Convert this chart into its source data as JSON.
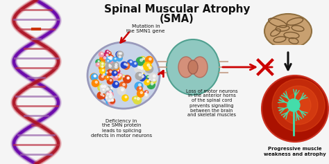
{
  "title_line1": "Spinal Muscular Atrophy",
  "title_line2": "(SMA)",
  "title_fontsize": 11,
  "title_fontsize2": 10.5,
  "bg_color": "#f5f5f5",
  "label_mutation": "Mutation in\nthe SMN1 gene",
  "label_deficiency": "Deficiency in\nthe SMN protein\nleads to splicing\ndefects in motor neurons",
  "label_loss": "Loss of motor neurons\nin the anterior horns\nof the spinal cord\nprevents signalling\nbetween the brain\nand skeletal muscles",
  "label_progressive": "Progressive muscle\nweakness and atrophy",
  "text_color": "#111111",
  "arrow_color": "#cc0000",
  "smn_ellipse_fill": "#c8d4e8",
  "smn_ellipse_edge": "#9999bb",
  "sc_fill": "#8fc8c0",
  "sc_edge": "#50a090",
  "brain_fill": "#c8a070",
  "neuron_bg": "#cc2200",
  "neuron_color": "#44ddaa"
}
